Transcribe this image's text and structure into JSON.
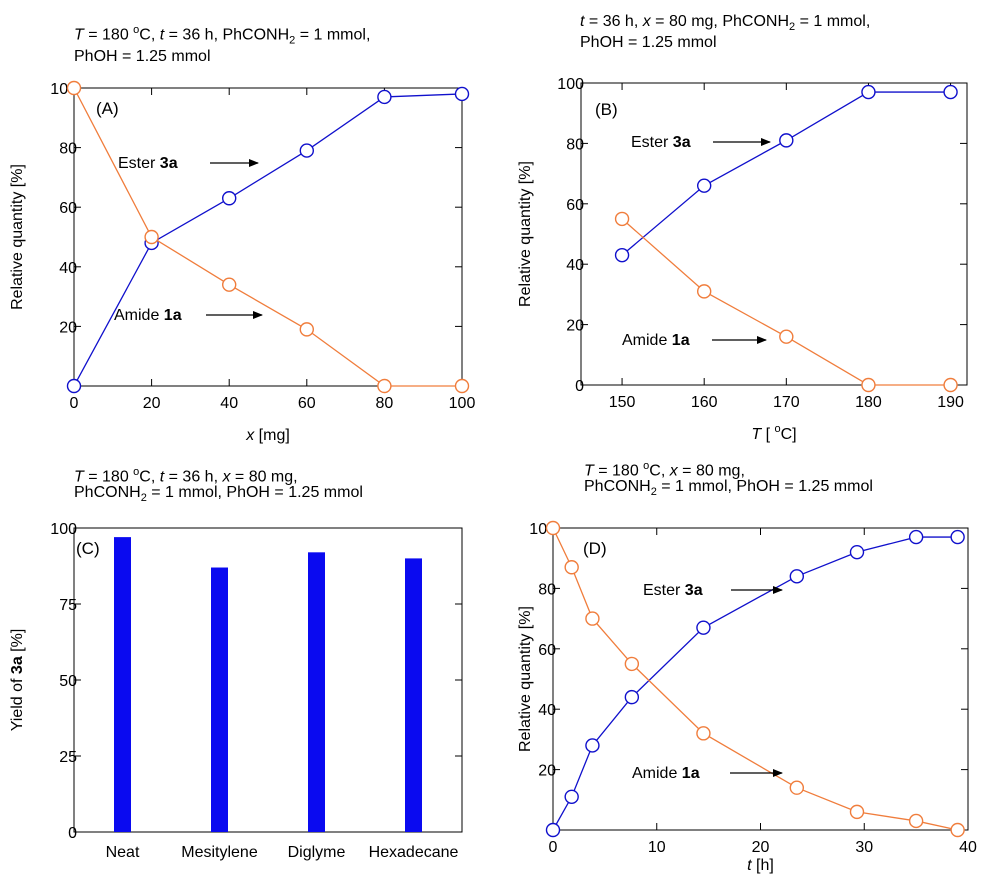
{
  "colors": {
    "ester": "#1010cc",
    "amide": "#f07d3c",
    "bar": "#0a0af0",
    "axis": "#000000"
  },
  "panels": {
    "A": {
      "condition": {
        "line1": [
          "T",
          " = 180 ",
          "o",
          "C, ",
          "t",
          " = 36 h, PhCONH",
          "2",
          " = 1 mmol,"
        ],
        "line2": "PhOH = 1.25 mmol"
      }
    },
    "B": {
      "condition": {
        "line1": [
          "t",
          " = 36 h, ",
          "x",
          " = 80 mg, PhCONH",
          "2",
          " = 1 mmol,"
        ],
        "line2": "PhOH = 1.25 mmol"
      }
    },
    "C": {
      "condition": {
        "line1": [
          "T",
          " = 180 ",
          "o",
          "C, ",
          "t",
          " = 36 h, ",
          "x",
          " = 80 mg,"
        ],
        "line2": [
          "PhCONH",
          "2",
          " = 1 mmol, PhOH = 1.25 mmol"
        ]
      }
    },
    "D": {
      "condition": {
        "line1": [
          "T",
          " = 180 ",
          "o",
          "C, ",
          "x",
          " = 80 mg,"
        ],
        "line2": [
          "PhCONH",
          "2",
          " = 1 mmol, PhOH = 1.25 mmol"
        ]
      }
    }
  },
  "chart_data": [
    {
      "panel": "A",
      "type": "line",
      "panel_label": "(A)",
      "xlabel_italic": "x",
      "xlabel_rest": " [mg]",
      "ylabel": "Relative quantity [%]",
      "xlim": [
        0,
        100
      ],
      "ylim": [
        0,
        100
      ],
      "xticks": [
        0,
        20,
        40,
        60,
        80,
        100
      ],
      "yticks": [
        0,
        20,
        40,
        60,
        80,
        100
      ],
      "series": [
        {
          "key": "ester",
          "x": [
            0,
            20,
            40,
            60,
            80,
            100
          ],
          "y": [
            0,
            48,
            63,
            79,
            97,
            98
          ]
        },
        {
          "key": "amide",
          "x": [
            0,
            20,
            40,
            60,
            80,
            100
          ],
          "y": [
            100,
            50,
            34,
            19,
            0,
            0
          ]
        }
      ],
      "annotations": [
        {
          "text": "Ester ",
          "bold": "3a",
          "series": "ester"
        },
        {
          "text": "Amide ",
          "bold": "1a",
          "series": "amide"
        }
      ]
    },
    {
      "panel": "B",
      "type": "line",
      "panel_label": "(B)",
      "xlabel_italic": "T",
      "xlabel_rest": " [ ",
      "xlabel_sup": "o",
      "xlabel_end": "C]",
      "ylabel": "Relative quantity [%]",
      "xlim": [
        145,
        192
      ],
      "ylim": [
        0,
        100
      ],
      "xticks": [
        150,
        160,
        170,
        180,
        190
      ],
      "yticks": [
        0,
        20,
        40,
        60,
        80,
        100
      ],
      "series": [
        {
          "key": "ester",
          "x": [
            150,
            160,
            170,
            180,
            190
          ],
          "y": [
            43,
            66,
            81,
            97,
            97
          ]
        },
        {
          "key": "amide",
          "x": [
            150,
            160,
            170,
            180,
            190
          ],
          "y": [
            55,
            31,
            16,
            0,
            0
          ]
        }
      ],
      "annotations": [
        {
          "text": "Ester ",
          "bold": "3a",
          "series": "ester"
        },
        {
          "text": "Amide ",
          "bold": "1a",
          "series": "amide"
        }
      ]
    },
    {
      "panel": "C",
      "type": "bar",
      "panel_label": "(C)",
      "ylabel_plain": "Yield of ",
      "ylabel_bold": "3a",
      "ylabel_end": " [%]",
      "ylim": [
        0,
        100
      ],
      "yticks": [
        0,
        25,
        50,
        75,
        100
      ],
      "categories": [
        "Neat",
        "Mesitylene",
        "Diglyme",
        "Hexadecane"
      ],
      "values": [
        97,
        87,
        92,
        90
      ]
    },
    {
      "panel": "D",
      "type": "line",
      "panel_label": "(D)",
      "xlabel_italic": "t",
      "xlabel_rest": " [h]",
      "ylabel": "Relative quantity [%]",
      "xlim": [
        0,
        40
      ],
      "ylim": [
        0,
        100
      ],
      "xticks": [
        0,
        10,
        20,
        30,
        40
      ],
      "yticks": [
        0,
        20,
        40,
        60,
        80,
        100
      ],
      "series": [
        {
          "key": "ester",
          "x": [
            0,
            1.8,
            3.8,
            7.6,
            14.5,
            23.5,
            29.3,
            35,
            39
          ],
          "y": [
            0,
            11,
            28,
            44,
            67,
            84,
            92,
            97,
            97
          ]
        },
        {
          "key": "amide",
          "x": [
            0,
            1.8,
            3.8,
            7.6,
            14.5,
            23.5,
            29.3,
            35,
            39
          ],
          "y": [
            100,
            87,
            70,
            55,
            32,
            14,
            6,
            3,
            0
          ]
        }
      ],
      "annotations": [
        {
          "text": "Ester ",
          "bold": "3a",
          "series": "ester"
        },
        {
          "text": "Amide ",
          "bold": "1a",
          "series": "amide"
        }
      ]
    }
  ]
}
